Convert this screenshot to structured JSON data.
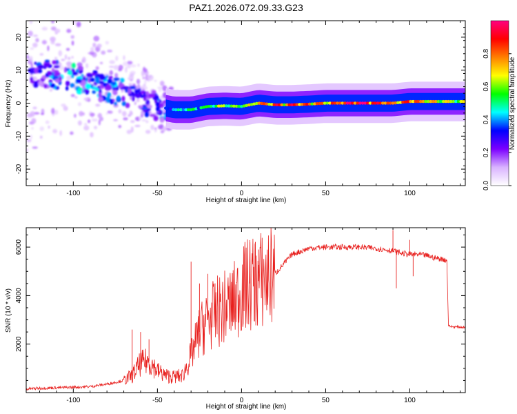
{
  "title": "PAZ1.2026.072.09.33.G23",
  "chart_data": [
    {
      "type": "heatmap",
      "title": "PAZ1.2026.072.09.33.G23",
      "xlabel": "Height of straight line (km)",
      "ylabel": "Frequency (Hz)",
      "xlim": [
        -128,
        133
      ],
      "ylim": [
        -25,
        25
      ],
      "x_ticks": [
        -100,
        -50,
        0,
        50,
        100
      ],
      "x_tick_labels": [
        "-100",
        "-50",
        "0",
        "50",
        "100"
      ],
      "y_ticks": [
        -20,
        -10,
        0,
        10,
        20
      ],
      "y_tick_labels": [
        "-20",
        "-10",
        "0",
        "10",
        "20"
      ],
      "colorbar": {
        "label": "Normalized spectral amplitude",
        "range": [
          0,
          1
        ],
        "ticks": [
          0.0,
          0.2,
          0.4,
          0.6,
          0.8
        ],
        "tick_labels": [
          "0.0",
          "0.2",
          "0.4",
          "0.6",
          "0.8"
        ],
        "colors": [
          "#ffffff",
          "#d9b3ff",
          "#7b00ff",
          "#0000ff",
          "#00ffff",
          "#00ff00",
          "#ffff00",
          "#ff8000",
          "#ff0000",
          "#ff0080"
        ]
      },
      "ridge": {
        "x": [
          -120,
          -110,
          -100,
          -90,
          -80,
          -70,
          -60,
          -50,
          -40,
          -30,
          -20,
          -10,
          0,
          10,
          20,
          30,
          40,
          50,
          60,
          70,
          80,
          90,
          100,
          110,
          120,
          133
        ],
        "frequency": [
          9,
          8.5,
          7.5,
          6,
          4.5,
          3,
          1.5,
          -1,
          -2,
          -2,
          -1,
          -0.8,
          -1,
          0,
          -0.5,
          -0.5,
          -0.3,
          0,
          0,
          0,
          0,
          0,
          0.5,
          0.5,
          0.5,
          0.5
        ],
        "amplitude": [
          0.3,
          0.35,
          0.4,
          0.35,
          0.35,
          0.35,
          0.3,
          0.3,
          0.4,
          0.5,
          0.55,
          0.6,
          0.6,
          0.7,
          0.85,
          0.9,
          0.8,
          0.75,
          0.9,
          0.95,
          0.9,
          0.75,
          0.9,
          0.7,
          0.65,
          0.6
        ]
      }
    },
    {
      "type": "line",
      "xlabel": "Height of straight line (km)",
      "ylabel": "SNR (10 * v/v)",
      "xlim": [
        -128,
        133
      ],
      "ylim": [
        0,
        6800
      ],
      "x_ticks": [
        -100,
        -50,
        0,
        50,
        100
      ],
      "x_tick_labels": [
        "-100",
        "-50",
        "0",
        "50",
        "100"
      ],
      "y_ticks": [
        2000,
        4000,
        6000
      ],
      "y_tick_labels": [
        "2000",
        "4000",
        "6000"
      ],
      "color": "#e8201e",
      "x": [
        -128,
        -120,
        -110,
        -100,
        -90,
        -80,
        -70,
        -65,
        -60,
        -55,
        -50,
        -45,
        -40,
        -35,
        -30,
        -25,
        -20,
        -15,
        -10,
        -5,
        0,
        5,
        10,
        15,
        20,
        25,
        30,
        40,
        50,
        60,
        70,
        80,
        85,
        90,
        95,
        100,
        105,
        110,
        115,
        120,
        122,
        123,
        125,
        130,
        133
      ],
      "y": [
        150,
        180,
        200,
        220,
        250,
        350,
        500,
        700,
        1200,
        1300,
        900,
        700,
        650,
        700,
        1500,
        2500,
        3000,
        3300,
        3500,
        3700,
        4200,
        4500,
        4600,
        4700,
        4900,
        5300,
        5700,
        5950,
        6000,
        6000,
        6000,
        5950,
        5900,
        5850,
        5750,
        5700,
        5700,
        5650,
        5550,
        5500,
        5450,
        2750,
        2720,
        2700,
        2700
      ],
      "spikes": [
        {
          "x": -65,
          "y": 2600
        },
        {
          "x": -60,
          "y": 2500
        },
        {
          "x": -55,
          "y": 2200
        },
        {
          "x": -30,
          "y": 5400
        },
        {
          "x": -25,
          "y": 4500
        },
        {
          "x": -20,
          "y": 4900
        },
        {
          "x": 5,
          "y": 6200
        },
        {
          "x": 10,
          "y": 5900
        },
        {
          "x": 90,
          "y": 6700
        },
        {
          "x": 92,
          "y": 4300
        },
        {
          "x": 100,
          "y": 6300
        },
        {
          "x": 102,
          "y": 4800
        }
      ]
    }
  ]
}
